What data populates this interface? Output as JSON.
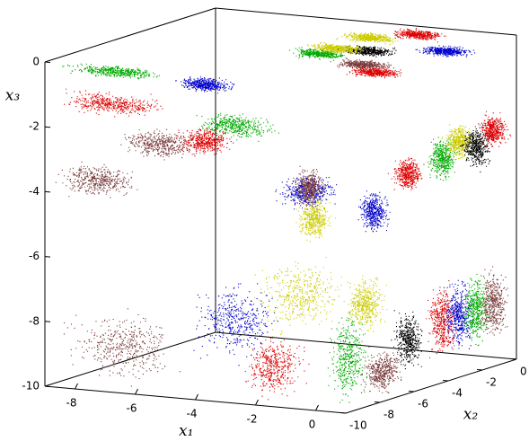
{
  "chart_data": {
    "type": "scatter3d",
    "xlabel": "x₁",
    "ylabel": "x₂",
    "zlabel": "x₃",
    "xlim": [
      -9,
      1
    ],
    "ylim": [
      -10,
      0
    ],
    "zlim": [
      -10,
      0
    ],
    "xticks": [
      -8,
      -6,
      -4,
      -2,
      0
    ],
    "yticks": [
      -10,
      -8,
      -6,
      -4,
      -2,
      0
    ],
    "zticks": [
      -10,
      -8,
      -6,
      -4,
      -2,
      0
    ],
    "clusters": [
      {
        "color": "#00aa00",
        "x": [
          -9,
          -5
        ],
        "y": [
          -10,
          -9
        ],
        "z": [
          -0.4,
          0
        ]
      },
      {
        "color": "#0000cc",
        "x": [
          -5,
          -3
        ],
        "y": [
          -10,
          -9
        ],
        "z": [
          -0.6,
          -0.1
        ]
      },
      {
        "color": "#dd0000",
        "x": [
          -9,
          -5
        ],
        "y": [
          -10,
          -9
        ],
        "z": [
          -1.6,
          -0.8
        ]
      },
      {
        "color": "#7a3b3b",
        "x": [
          -7,
          -4
        ],
        "y": [
          -10,
          -9
        ],
        "z": [
          -2.8,
          -1.8
        ]
      },
      {
        "color": "#7a3b3b",
        "x": [
          -9,
          -6
        ],
        "y": [
          -10,
          -9
        ],
        "z": [
          -4.2,
          -3
        ]
      },
      {
        "color": "#dd0000",
        "x": [
          -5,
          -3
        ],
        "y": [
          -10,
          -9
        ],
        "z": [
          -2.6,
          -1.6
        ]
      },
      {
        "color": "#00aa00",
        "x": [
          -5,
          -2
        ],
        "y": [
          -9,
          -8
        ],
        "z": [
          -2.2,
          -1.3
        ]
      },
      {
        "color": "#0000cc",
        "x": [
          -3,
          -1
        ],
        "y": [
          -8,
          -6
        ],
        "z": [
          -4.5,
          -3.3
        ]
      },
      {
        "color": "#7a3b3b",
        "x": [
          -9,
          -5
        ],
        "y": [
          -10,
          -8
        ],
        "z": [
          -10,
          -7.5
        ]
      },
      {
        "color": "#0000cc",
        "x": [
          -5,
          -2
        ],
        "y": [
          -10,
          -7
        ],
        "z": [
          -9,
          -6.5
        ]
      },
      {
        "color": "#cccc00",
        "x": [
          -4,
          -1
        ],
        "y": [
          -8,
          -5
        ],
        "z": [
          -8.5,
          -6
        ]
      },
      {
        "color": "#dd0000",
        "x": [
          -3,
          -1
        ],
        "y": [
          -10,
          -8
        ],
        "z": [
          -10,
          -8
        ]
      },
      {
        "color": "#00aa00",
        "x": [
          0,
          1
        ],
        "y": [
          -10,
          -8
        ],
        "z": [
          -10,
          -7
        ]
      },
      {
        "color": "#7a3b3b",
        "x": [
          0,
          1
        ],
        "y": [
          -8,
          -6
        ],
        "z": [
          -10,
          -8.5
        ]
      },
      {
        "color": "#cccc00",
        "x": [
          0,
          1
        ],
        "y": [
          -9,
          -7
        ],
        "z": [
          -8,
          -6
        ]
      },
      {
        "color": "#000000",
        "x": [
          0,
          1
        ],
        "y": [
          -6,
          -5
        ],
        "z": [
          -9.5,
          -7.5
        ]
      },
      {
        "color": "#dd0000",
        "x": [
          0,
          1
        ],
        "y": [
          -4,
          -3
        ],
        "z": [
          -9.5,
          -7
        ]
      },
      {
        "color": "#0000cc",
        "x": [
          0,
          1
        ],
        "y": [
          -3,
          -2
        ],
        "z": [
          -9.5,
          -7
        ]
      },
      {
        "color": "#00aa00",
        "x": [
          0,
          1
        ],
        "y": [
          -2,
          -1
        ],
        "z": [
          -9.5,
          -7
        ]
      },
      {
        "color": "#7a3b3b",
        "x": [
          0,
          1
        ],
        "y": [
          -1,
          0
        ],
        "z": [
          -9.5,
          -7
        ]
      },
      {
        "color": "#7a3b3b",
        "x": [
          -1,
          0
        ],
        "y": [
          -10,
          -9
        ],
        "z": [
          -4,
          -2.5
        ]
      },
      {
        "color": "#cccc00",
        "x": [
          -1,
          0
        ],
        "y": [
          -10,
          -8.5
        ],
        "z": [
          -5,
          -3.5
        ]
      },
      {
        "color": "#0000cc",
        "x": [
          0,
          1
        ],
        "y": [
          -8,
          -7
        ],
        "z": [
          -5,
          -3.5
        ]
      },
      {
        "color": "#dd0000",
        "x": [
          0,
          1
        ],
        "y": [
          -6,
          -5
        ],
        "z": [
          -4,
          -2.8
        ]
      },
      {
        "color": "#00aa00",
        "x": [
          0,
          1
        ],
        "y": [
          -4,
          -3
        ],
        "z": [
          -4,
          -2.5
        ]
      },
      {
        "color": "#cccc00",
        "x": [
          0,
          1
        ],
        "y": [
          -3,
          -2
        ],
        "z": [
          -3.5,
          -2.3
        ]
      },
      {
        "color": "#000000",
        "x": [
          0,
          1
        ],
        "y": [
          -2,
          -1
        ],
        "z": [
          -4,
          -2.5
        ]
      },
      {
        "color": "#dd0000",
        "x": [
          0,
          1
        ],
        "y": [
          -1,
          0
        ],
        "z": [
          -3.5,
          -2.3
        ]
      },
      {
        "color": "#dd0000",
        "x": [
          -3,
          -1
        ],
        "y": [
          -1,
          0
        ],
        "z": [
          -0.3,
          0
        ]
      },
      {
        "color": "#cccc00",
        "x": [
          -4,
          -2
        ],
        "y": [
          -2,
          -1
        ],
        "z": [
          -0.3,
          0
        ]
      },
      {
        "color": "#000000",
        "x": [
          -3,
          -1
        ],
        "y": [
          -4,
          -3
        ],
        "z": [
          -0.3,
          0
        ]
      },
      {
        "color": "#00aa00",
        "x": [
          -4,
          -2
        ],
        "y": [
          -5,
          -4
        ],
        "z": [
          -0.3,
          0
        ]
      },
      {
        "color": "#cccc00",
        "x": [
          -4,
          -2
        ],
        "y": [
          -4,
          -3
        ],
        "z": [
          -0.3,
          0
        ]
      },
      {
        "color": "#0000cc",
        "x": [
          -1,
          1
        ],
        "y": [
          -3,
          -2
        ],
        "z": [
          -0.3,
          0
        ]
      },
      {
        "color": "#7a3b3b",
        "x": [
          -2,
          0
        ],
        "y": [
          -6,
          -5
        ],
        "z": [
          -0.3,
          0
        ]
      },
      {
        "color": "#dd0000",
        "x": [
          -1,
          1
        ],
        "y": [
          -7,
          -6
        ],
        "z": [
          -0.3,
          0
        ]
      }
    ]
  }
}
